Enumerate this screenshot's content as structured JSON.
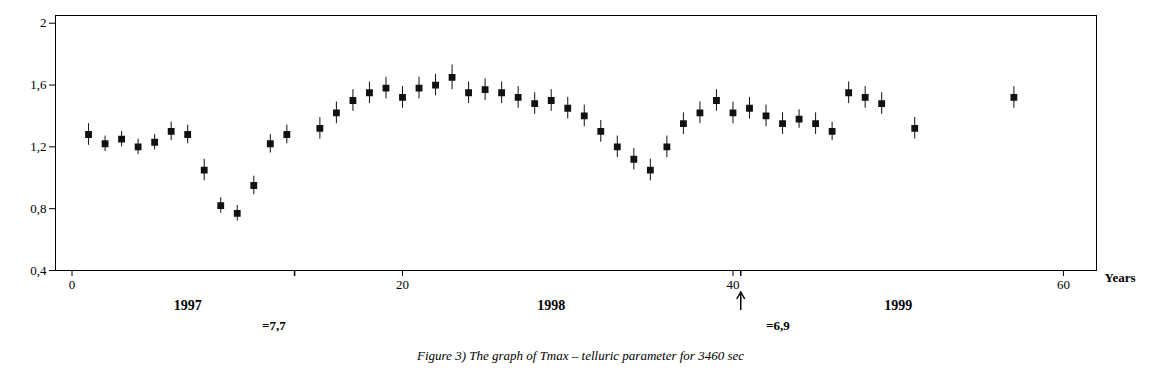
{
  "chart_data": {
    "type": "errorbar",
    "xlabel": "Years",
    "caption": "Figure 3) The graph of Tmax – telluric parameter for 3460 sec",
    "xlim": [
      -1,
      62
    ],
    "ylim": [
      0.4,
      2.05
    ],
    "xticks": [
      0,
      20,
      40,
      60
    ],
    "yticks": [
      {
        "value": 0.4,
        "label": "0,4"
      },
      {
        "value": 0.8,
        "label": "0,8"
      },
      {
        "value": 1.2,
        "label": "1,2"
      },
      {
        "value": 1.6,
        "label": "1,6"
      },
      2
    ],
    "grid": false,
    "color": "#111111",
    "marker": "square",
    "year_labels": [
      {
        "text": "1997",
        "x": 7
      },
      {
        "text": "1998",
        "x": 29
      },
      {
        "text": "1999",
        "x": 50
      }
    ],
    "annotations": [
      {
        "text": "=7,7",
        "x": 11.5
      },
      {
        "text": "=6,9",
        "x": 42.0
      }
    ],
    "special_ticks": [
      13.5,
      40.5
    ],
    "arrows": [
      40.5
    ],
    "x": [
      1,
      2,
      3,
      4,
      5,
      6,
      7,
      8,
      9,
      10,
      11,
      12,
      13,
      15,
      16,
      17,
      18,
      19,
      20,
      21,
      22,
      23,
      24,
      25,
      26,
      27,
      28,
      29,
      30,
      31,
      32,
      33,
      34,
      35,
      36,
      37,
      38,
      39,
      40,
      41,
      42,
      43,
      44,
      45,
      46,
      47,
      48,
      49,
      51,
      57
    ],
    "values": [
      1.28,
      1.22,
      1.25,
      1.2,
      1.23,
      1.3,
      1.28,
      1.05,
      0.82,
      0.77,
      0.95,
      1.22,
      1.28,
      1.32,
      1.42,
      1.5,
      1.55,
      1.58,
      1.52,
      1.58,
      1.6,
      1.65,
      1.55,
      1.57,
      1.55,
      1.52,
      1.48,
      1.5,
      1.45,
      1.4,
      1.3,
      1.2,
      1.12,
      1.05,
      1.2,
      1.35,
      1.42,
      1.5,
      1.42,
      1.45,
      1.4,
      1.35,
      1.38,
      1.35,
      1.3,
      1.55,
      1.52,
      1.48,
      1.32,
      1.52
    ],
    "errors": [
      0.07,
      0.05,
      0.05,
      0.05,
      0.05,
      0.06,
      0.06,
      0.07,
      0.05,
      0.05,
      0.06,
      0.06,
      0.06,
      0.07,
      0.07,
      0.07,
      0.07,
      0.07,
      0.07,
      0.07,
      0.07,
      0.08,
      0.07,
      0.07,
      0.07,
      0.07,
      0.07,
      0.07,
      0.07,
      0.07,
      0.07,
      0.07,
      0.07,
      0.07,
      0.07,
      0.07,
      0.07,
      0.07,
      0.07,
      0.07,
      0.07,
      0.07,
      0.06,
      0.07,
      0.06,
      0.07,
      0.07,
      0.07,
      0.07,
      0.07
    ]
  }
}
